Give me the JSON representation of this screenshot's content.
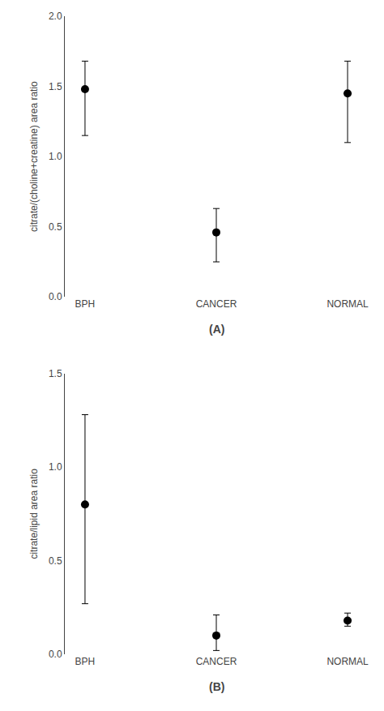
{
  "chart_data": [
    {
      "type": "scatter",
      "categories": [
        "BPH",
        "CANCER",
        "NORMAL"
      ],
      "values": [
        1.48,
        0.46,
        1.45
      ],
      "err_low": [
        0.33,
        0.21,
        0.35
      ],
      "err_high": [
        0.2,
        0.17,
        0.23
      ],
      "ylabel": "citrate/(choline+creatine) area ratio",
      "annotations": [
        "(A)"
      ],
      "ylim": [
        0,
        2.0
      ],
      "yticks": [
        {
          "value": 0,
          "label": "0.0"
        },
        0.5,
        {
          "value": 1.0,
          "label": "1.0"
        },
        1.5,
        {
          "value": 2.0,
          "label": "2.0"
        }
      ],
      "color": "black",
      "marker": "circle",
      "grid": false
    },
    {
      "type": "scatter",
      "categories": [
        "BPH",
        "CANCER",
        "NORMAL"
      ],
      "values": [
        0.8,
        0.1,
        0.18
      ],
      "err_low": [
        0.53,
        0.08,
        0.03
      ],
      "err_high": [
        0.48,
        0.11,
        0.04
      ],
      "ylabel": "citrate/lipid area ratio",
      "annotations": [
        "(B)"
      ],
      "ylim": [
        0,
        1.5
      ],
      "yticks": [
        {
          "value": 0,
          "label": "0.0"
        },
        0.5,
        {
          "value": 1.0,
          "label": "1.0"
        },
        1.5
      ],
      "color": "black",
      "marker": "circle",
      "grid": false
    }
  ]
}
